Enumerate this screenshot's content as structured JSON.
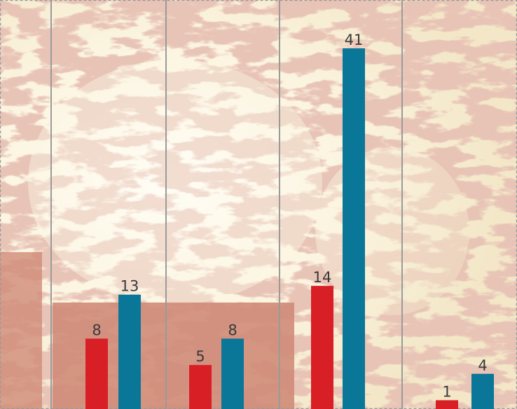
{
  "chart_data": {
    "type": "bar",
    "title": "",
    "xlabel": "",
    "ylabel": "",
    "categories": [
      "",
      "",
      "",
      ""
    ],
    "series": [
      {
        "color": "#d81f26",
        "values": [
          8,
          5,
          14,
          1
        ]
      },
      {
        "color": "#0a7698",
        "values": [
          13,
          8,
          41,
          4
        ]
      }
    ],
    "ylim": [
      0,
      41
    ],
    "grid": false,
    "legend": false,
    "background": {
      "description_color_map": "#cf8b78",
      "description_color_ground": "#fbf6e4"
    }
  },
  "labels": {
    "s0c0": "8",
    "s1c0": "13",
    "s0c1": "5",
    "s1c1": "8",
    "s0c2": "14",
    "s1c2": "41",
    "s0c3": "1",
    "s1c3": "4"
  }
}
